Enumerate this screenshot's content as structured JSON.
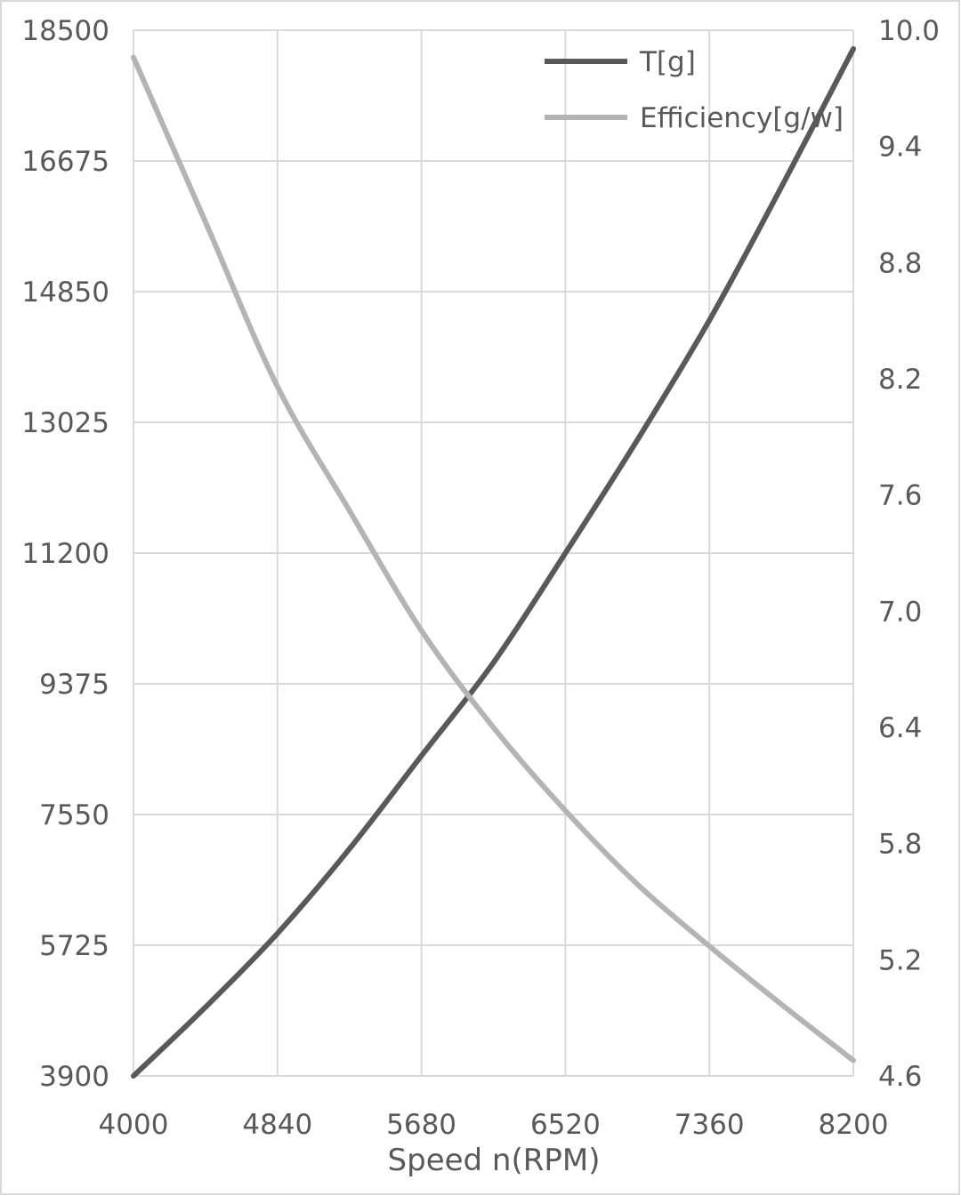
{
  "chart_data": {
    "type": "line",
    "xlabel": "Speed n(RPM)",
    "ylabel": "",
    "y2label": "",
    "xlim": [
      4000,
      8200
    ],
    "ylim": [
      3900,
      18500
    ],
    "y2lim": [
      4.6,
      10.0
    ],
    "x_ticks": [
      "4000",
      "4840",
      "5680",
      "6520",
      "7360",
      "8200"
    ],
    "y_ticks": [
      "3900",
      "5725",
      "7550",
      "9375",
      "11200",
      "13025",
      "14850",
      "16675",
      "18500"
    ],
    "y2_ticks": [
      "4.6",
      "5.2",
      "5.8",
      "6.4",
      "7.0",
      "7.6",
      "8.2",
      "8.8",
      "9.4",
      "10.0"
    ],
    "grid": true,
    "legend_position": "top-right",
    "x": [
      4000,
      4420,
      4840,
      5260,
      5680,
      6100,
      6520,
      6940,
      7360,
      7780,
      8200
    ],
    "series": [
      {
        "name": "T[g]",
        "axis": "left",
        "color": "#595959",
        "values": [
          3900,
          4860,
          5890,
          7070,
          8370,
          9670,
          11200,
          12780,
          14450,
          16310,
          18240
        ]
      },
      {
        "name": "Efficiency[g/w]",
        "axis": "right",
        "color": "#b4b4b4",
        "values": [
          9.86,
          9.01,
          8.16,
          7.52,
          6.9,
          6.4,
          5.97,
          5.59,
          5.27,
          4.97,
          4.68
        ]
      }
    ]
  }
}
